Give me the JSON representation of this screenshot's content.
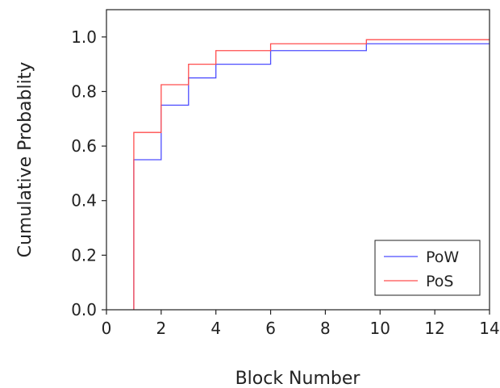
{
  "chart_data": {
    "type": "line",
    "subtype": "step-cdf",
    "xlabel": "Block Number",
    "ylabel": "Cumulative Probablity",
    "xlim": [
      0,
      14
    ],
    "ylim": [
      0,
      1.1
    ],
    "xticks": [
      0,
      2,
      4,
      6,
      8,
      10,
      12,
      14
    ],
    "yticks": [
      0.0,
      0.2,
      0.4,
      0.6,
      0.8,
      1.0
    ],
    "xtick_labels": [
      "0",
      "2",
      "4",
      "6",
      "8",
      "10",
      "12",
      "14"
    ],
    "ytick_labels": [
      "0.0",
      "0.2",
      "0.4",
      "0.6",
      "0.8",
      "1.0"
    ],
    "grid": false,
    "legend_position": "bottom-right",
    "series": [
      {
        "name": "PoW",
        "color": "#4d4dff",
        "x": [
          1,
          1,
          2,
          3,
          4,
          6,
          9.5,
          14
        ],
        "y": [
          0,
          0.55,
          0.75,
          0.85,
          0.9,
          0.95,
          0.975,
          0.975
        ]
      },
      {
        "name": "PoS",
        "color": "#ff4d4d",
        "x": [
          1,
          1,
          2,
          3,
          4,
          6,
          9.5,
          14
        ],
        "y": [
          0,
          0.65,
          0.825,
          0.9,
          0.95,
          0.975,
          0.99,
          0.99
        ]
      }
    ]
  }
}
